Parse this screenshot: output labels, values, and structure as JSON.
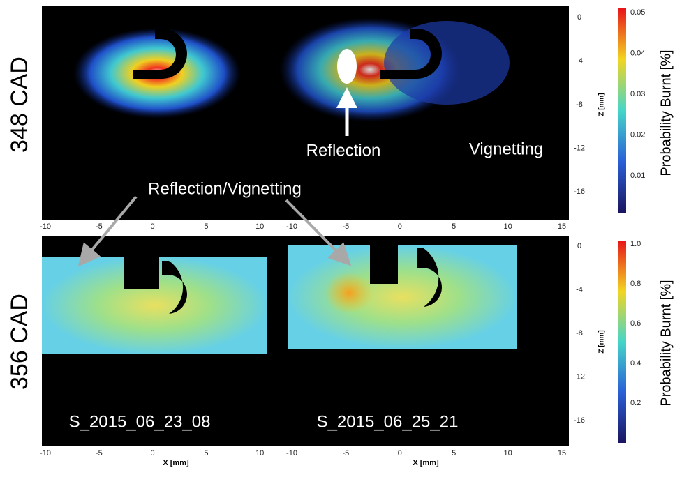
{
  "colorbar_label": "Probability Burnt [%]",
  "z_axis_label": "Z [mm]",
  "x_axis_label": "X [mm]",
  "z_ticks": [
    "0",
    "-4",
    "-8",
    "-12",
    "-16"
  ],
  "x_ticks_left": [
    "-10",
    "-5",
    "0",
    "5",
    "10"
  ],
  "x_ticks_right": [
    "-10",
    "-5",
    "0",
    "5",
    "10",
    "15"
  ],
  "top": {
    "label": "348 CAD",
    "colorbar_ticks": [
      "0.05",
      "0.04",
      "0.03",
      "0.02",
      "0.01"
    ],
    "annotations": {
      "reflection": "Reflection",
      "vignetting": "Vignetting",
      "reflection_vignetting": "Reflection/Vignetting"
    }
  },
  "bottom": {
    "label": "356 CAD",
    "colorbar_ticks": [
      "1.0",
      "0.8",
      "0.6",
      "0.4",
      "0.2"
    ],
    "sample_left": "S_2015_06_23_08",
    "sample_right": "S_2015_06_25_21"
  }
}
